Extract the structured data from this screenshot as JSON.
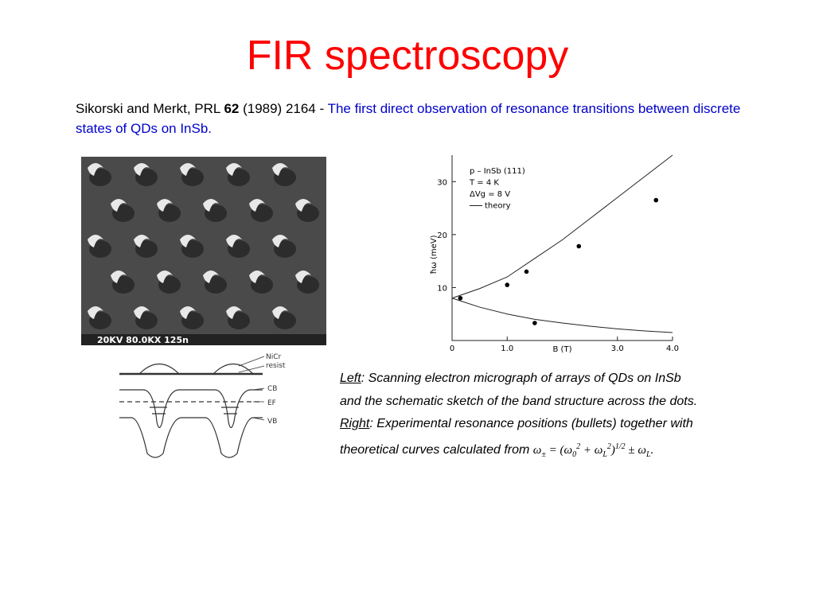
{
  "title": "FIR spectroscopy",
  "citation": {
    "authors": "Sikorski and Merkt, PRL ",
    "volume": "62",
    "rest": " (1989) 2164 - ",
    "summary": "The first direct observation of resonance transitions between discrete states of QDs on InSb."
  },
  "micrograph": {
    "label": "20KV  80.0KX  125n"
  },
  "schematic": {
    "labels": [
      "NiCr",
      "resist",
      "CB",
      "EF",
      "VB"
    ]
  },
  "figure_right": {
    "type": "scatter",
    "legend_lines": [
      "p – InSb (111)",
      "T = 4 K",
      "ΔVg = 8 V",
      "theory"
    ],
    "xlabel": "B (T)",
    "ylabel": "ħω (meV)",
    "xlim": [
      0,
      4
    ],
    "ylim": [
      0,
      35
    ],
    "xticks": [
      0,
      {
        "value": 1,
        "label": "1.0"
      },
      {
        "value": 3,
        "label": "3.0"
      },
      {
        "value": 4,
        "label": "4.0"
      }
    ],
    "yticks": [
      10,
      20,
      30
    ],
    "points": {
      "x": [
        0.15,
        1.0,
        1.35,
        1.5,
        2.3,
        3.7
      ],
      "y": [
        8,
        10.5,
        13,
        3.3,
        17.8,
        26.5
      ]
    },
    "theory": {
      "x": [
        0,
        0.5,
        1,
        1.5,
        2,
        2.5,
        3,
        3.5,
        4
      ],
      "upper": [
        8,
        9.8,
        12,
        15.5,
        19,
        23,
        27,
        31,
        35
      ],
      "lower": [
        8,
        6.3,
        5,
        4,
        3.3,
        2.7,
        2.2,
        1.8,
        1.5
      ]
    }
  },
  "caption": {
    "left_label": "Left",
    "left_lines": [
      ": Scanning electron micrograph of arrays of  QDs on InSb",
      "and the schematic sketch of  the band structure across the dots."
    ],
    "right_label": "Right",
    "right_lines": [
      ": Experimental resonance positions (bullets) together with",
      "theoretical curves calculated from"
    ],
    "formula": [
      {
        "text": "ω",
        "pos": "base"
      },
      {
        "text": "±",
        "pos": "sub"
      },
      {
        "text": " = (ω",
        "pos": "base"
      },
      {
        "text": "0",
        "pos": "sub"
      },
      {
        "text": "2",
        "pos": "sup"
      },
      {
        "text": " + ω",
        "pos": "base"
      },
      {
        "text": "L",
        "pos": "sub"
      },
      {
        "text": "2",
        "pos": "sup"
      },
      {
        "text": ")",
        "pos": "base"
      },
      {
        "text": "1/2",
        "pos": "sup"
      },
      {
        "text": " ± ω",
        "pos": "base"
      },
      {
        "text": "L",
        "pos": "sub"
      },
      {
        "text": ".",
        "pos": "base"
      }
    ]
  }
}
